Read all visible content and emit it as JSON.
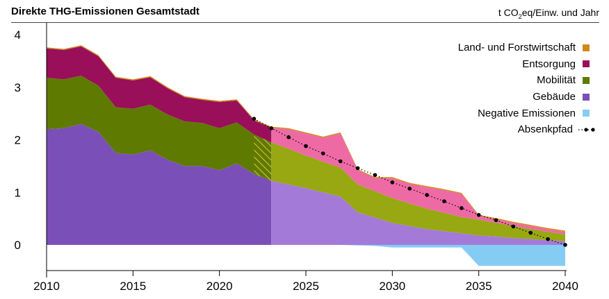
{
  "header": {
    "title": "Direkte THG-Emissionen Gesamtstadt",
    "unit_prefix": "t CO",
    "unit_sub": "2",
    "unit_suffix": "eq/Einw. und Jahr"
  },
  "chart_data": {
    "type": "area",
    "title": "Direkte THG-Emissionen Gesamtstadt",
    "ylabel": "t CO2eq/Einw. und Jahr",
    "xlim": [
      2010,
      2040
    ],
    "ylim": [
      -0.45,
      4
    ],
    "x_ticks": [
      2010,
      2015,
      2020,
      2025,
      2030,
      2035,
      2040
    ],
    "y_ticks": [
      0,
      1,
      2,
      3,
      4
    ],
    "historical_end": 2023,
    "legend_position": "top-right",
    "stacked": true,
    "x": [
      2010,
      2011,
      2012,
      2013,
      2014,
      2015,
      2016,
      2017,
      2018,
      2019,
      2020,
      2021,
      2022,
      2023,
      2024,
      2025,
      2026,
      2027,
      2028,
      2029,
      2030,
      2031,
      2032,
      2033,
      2034,
      2035,
      2036,
      2037,
      2038,
      2039,
      2040
    ],
    "series": [
      {
        "name": "Gebäude",
        "color": "#7b4fb8",
        "projected_color": "#a47ad9",
        "values": [
          2.2,
          2.22,
          2.3,
          2.15,
          1.75,
          1.72,
          1.8,
          1.62,
          1.5,
          1.5,
          1.42,
          1.55,
          1.35,
          1.22,
          1.15,
          1.08,
          1.0,
          0.92,
          0.62,
          0.52,
          0.42,
          0.36,
          0.3,
          0.26,
          0.22,
          0.18,
          0.16,
          0.13,
          0.11,
          0.09,
          0.07
        ]
      },
      {
        "name": "Mobilität",
        "color": "#5f7a00",
        "projected_color": "#97a812",
        "values": [
          0.98,
          0.93,
          0.92,
          0.88,
          0.87,
          0.87,
          0.87,
          0.86,
          0.85,
          0.82,
          0.8,
          0.78,
          0.75,
          0.73,
          0.68,
          0.62,
          0.58,
          0.55,
          0.53,
          0.5,
          0.47,
          0.43,
          0.39,
          0.35,
          0.31,
          0.3,
          0.26,
          0.23,
          0.19,
          0.16,
          0.13
        ]
      },
      {
        "name": "Entsorgung",
        "color": "#990f5a",
        "projected_color": "#ee6aa5",
        "values": [
          0.56,
          0.56,
          0.56,
          0.56,
          0.56,
          0.54,
          0.52,
          0.5,
          0.46,
          0.44,
          0.5,
          0.42,
          0.27,
          0.28,
          0.37,
          0.42,
          0.46,
          0.65,
          0.27,
          0.25,
          0.38,
          0.37,
          0.41,
          0.43,
          0.44,
          0.07,
          0.07,
          0.06,
          0.06,
          0.05,
          0.05
        ]
      },
      {
        "name": "Land- und Forstwirtschaft",
        "color": "#cf8a1a",
        "projected_color": "#cf8a1a",
        "values": [
          0.02,
          0.02,
          0.02,
          0.02,
          0.02,
          0.02,
          0.02,
          0.02,
          0.02,
          0.02,
          0.02,
          0.02,
          0.02,
          0.02,
          0.02,
          0.02,
          0.02,
          0.02,
          0.02,
          0.02,
          0.02,
          0.02,
          0.02,
          0.02,
          0.02,
          0.02,
          0.02,
          0.02,
          0.02,
          0.02,
          0.02
        ]
      },
      {
        "name": "Negative Emissionen",
        "color": "#85ccf5",
        "projected_color": "#85ccf5",
        "values": [
          0,
          0,
          0,
          0,
          0,
          0,
          0,
          0,
          0,
          0,
          0,
          0,
          0,
          0,
          0,
          0,
          0,
          0,
          -0.01,
          -0.02,
          -0.05,
          -0.05,
          -0.05,
          -0.05,
          -0.05,
          -0.4,
          -0.4,
          -0.4,
          -0.4,
          -0.4,
          -0.4
        ]
      }
    ],
    "pathway": {
      "name": "Absenkpfad",
      "x": [
        2022,
        2023,
        2024,
        2025,
        2026,
        2027,
        2028,
        2029,
        2030,
        2031,
        2032,
        2033,
        2034,
        2035,
        2036,
        2037,
        2038,
        2039,
        2040
      ],
      "values": [
        2.4,
        2.22,
        2.05,
        1.88,
        1.74,
        1.59,
        1.46,
        1.33,
        1.19,
        1.07,
        0.95,
        0.83,
        0.7,
        0.57,
        0.47,
        0.35,
        0.23,
        0.11,
        0.0
      ]
    },
    "legend_order": [
      "Land- und Forstwirtschaft",
      "Entsorgung",
      "Mobilität",
      "Gebäude",
      "Negative Emissionen",
      "Absenkpfad"
    ]
  }
}
